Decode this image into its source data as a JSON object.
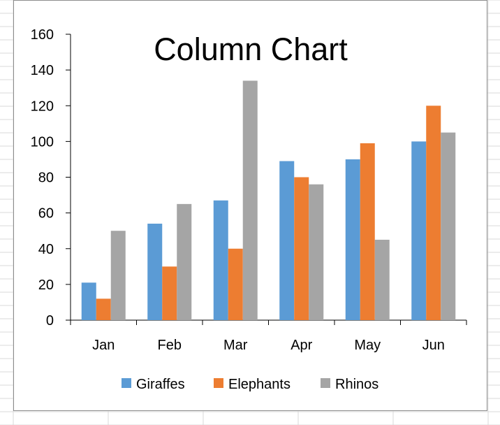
{
  "colors": {
    "background": "#ffffff",
    "gridline": "#d9d9d9",
    "frame": "#8c8c8c",
    "axis": "#000000",
    "giraffes": "#5b9bd5",
    "elephants": "#ed7d31",
    "rhinos": "#a5a5a5"
  },
  "chart_data": {
    "type": "bar",
    "title": "Column Chart",
    "xlabel": "",
    "ylabel": "",
    "categories": [
      "Jan",
      "Feb",
      "Mar",
      "Apr",
      "May",
      "Jun"
    ],
    "series": [
      {
        "name": "Giraffes",
        "color": "#5b9bd5",
        "values": [
          21,
          54,
          67,
          89,
          90,
          100
        ]
      },
      {
        "name": "Elephants",
        "color": "#ed7d31",
        "values": [
          12,
          30,
          40,
          80,
          99,
          120
        ]
      },
      {
        "name": "Rhinos",
        "color": "#a5a5a5",
        "values": [
          50,
          65,
          134,
          76,
          45,
          105
        ]
      }
    ],
    "ylim": [
      0,
      160
    ],
    "yticks": [
      "0",
      "20",
      "40",
      "60",
      "80",
      "100",
      "120",
      "140",
      "160"
    ],
    "grid": false,
    "legend_position": "bottom"
  }
}
